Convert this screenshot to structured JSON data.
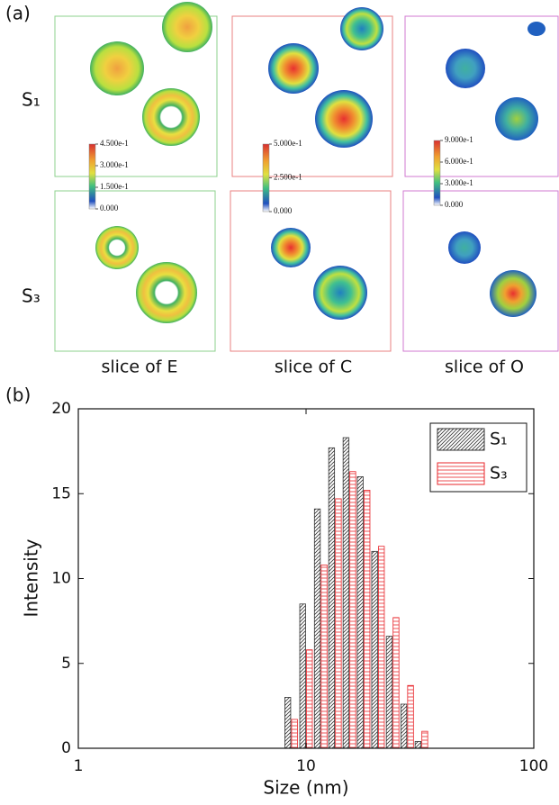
{
  "figure_a": {
    "panel_label": "(a)",
    "row_labels": [
      "S₁",
      "S₃"
    ],
    "column_labels": [
      "slice of E",
      "slice of C",
      "slice of O"
    ],
    "colorbars": [
      [
        "4.500e-1",
        "3.000e-1",
        "1.500e-1",
        "0.000"
      ],
      [
        "5.000e-1",
        "2.500e-1",
        "0.000"
      ],
      [
        "9.000e-1",
        "6.000e-1",
        "3.000e-1",
        "0.000"
      ]
    ]
  },
  "chart_data": {
    "type": "bar",
    "panel_label": "(b)",
    "x_label": "Size (nm)",
    "y_label": "Intensity",
    "x": [
      8.6,
      10.0,
      11.6,
      13.4,
      15.5,
      17.9,
      20.7,
      24.0,
      27.8,
      32.1
    ],
    "series": [
      {
        "name": "S₁",
        "color": "#333333",
        "hatch": "diagonal",
        "values": [
          3.0,
          8.5,
          14.1,
          17.7,
          18.3,
          16.0,
          11.6,
          6.6,
          2.6,
          0.4
        ]
      },
      {
        "name": "S₃",
        "color": "#e8242a",
        "hatch": "horizontal",
        "values": [
          1.7,
          5.8,
          10.8,
          14.7,
          16.3,
          15.2,
          11.9,
          7.7,
          3.7,
          1.0
        ]
      }
    ],
    "xlim": [
      1,
      100
    ],
    "xticks": [
      1,
      10,
      100
    ],
    "xscale": "log",
    "ylim": [
      0,
      20
    ],
    "yticks": [
      0,
      5,
      10,
      15,
      20
    ],
    "legend": "upper right"
  }
}
